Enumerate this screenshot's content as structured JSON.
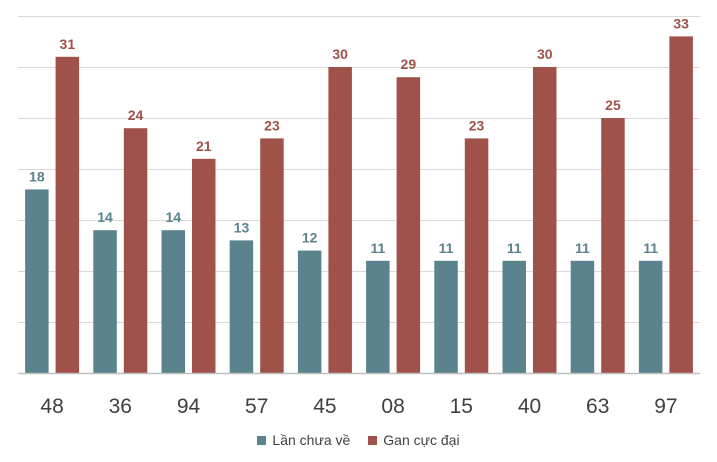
{
  "chart_data": {
    "type": "bar",
    "title": "",
    "xlabel": "",
    "ylabel": "",
    "ylim": [
      0,
      35
    ],
    "grid": true,
    "legend_position": "bottom",
    "categories": [
      "48",
      "36",
      "94",
      "57",
      "45",
      "08",
      "15",
      "40",
      "63",
      "97"
    ],
    "series": [
      {
        "name": "Lần chưa về",
        "color": "#5a838d",
        "values": [
          18,
          14,
          14,
          13,
          12,
          11,
          11,
          11,
          11,
          11
        ]
      },
      {
        "name": "Gan cực đại",
        "color": "#a0524a",
        "values": [
          31,
          24,
          21,
          23,
          30,
          29,
          23,
          30,
          25,
          33
        ]
      }
    ]
  }
}
